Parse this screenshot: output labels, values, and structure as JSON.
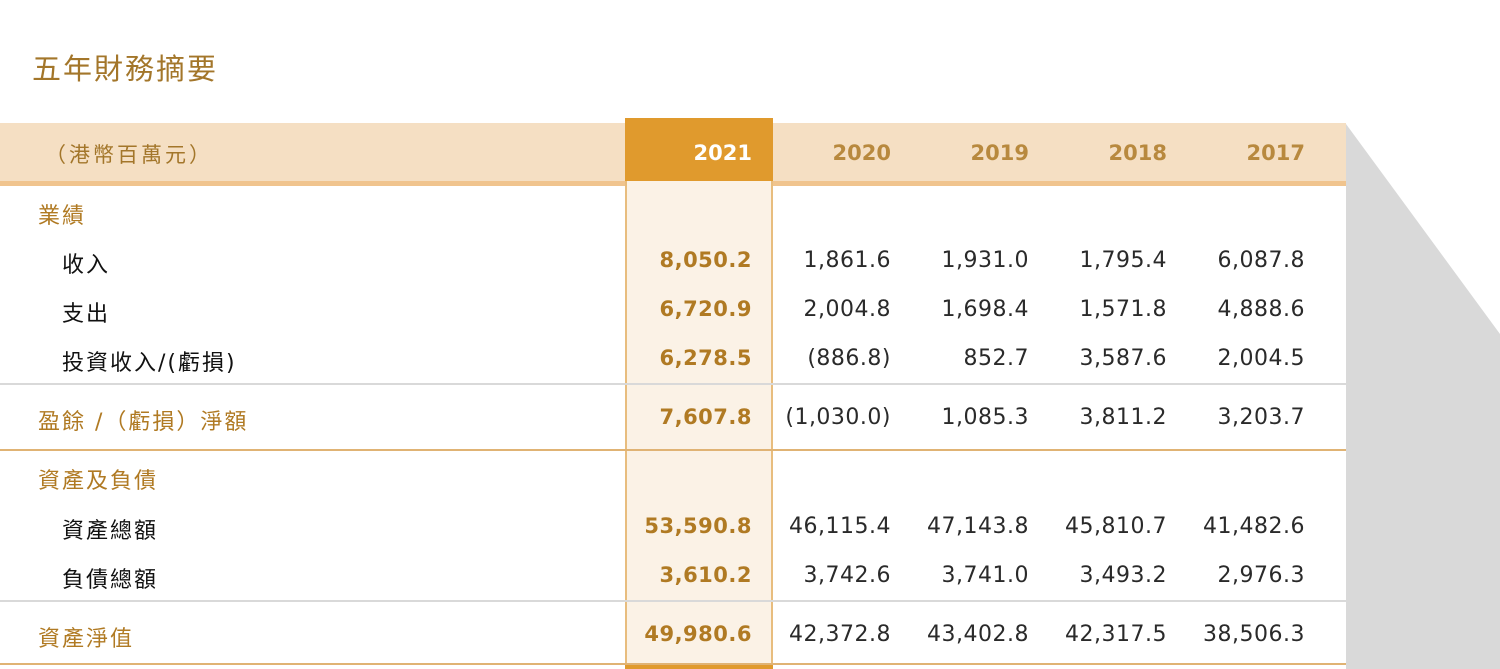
{
  "title": "五年財務摘要",
  "header": {
    "unit_label": "（港幣百萬元）",
    "years": [
      "2021",
      "2020",
      "2019",
      "2018",
      "2017"
    ]
  },
  "sections": {
    "results": {
      "title": "業績",
      "rows": [
        {
          "label": "收入",
          "values": [
            "8,050.2",
            "1,861.6",
            "1,931.0",
            "1,795.4",
            "6,087.8"
          ]
        },
        {
          "label": "支出",
          "values": [
            "6,720.9",
            "2,004.8",
            "1,698.4",
            "1,571.8",
            "4,888.6"
          ]
        },
        {
          "label": "投資收入/(虧損)",
          "values": [
            "6,278.5",
            "(886.8)",
            "852.7",
            "3,587.6",
            "2,004.5"
          ]
        }
      ]
    },
    "surplus": {
      "label": "盈餘 /（虧損）淨額",
      "values": [
        "7,607.8",
        "(1,030.0)",
        "1,085.3",
        "3,811.2",
        "3,203.7"
      ]
    },
    "assets_liabilities": {
      "title": "資產及負債",
      "rows": [
        {
          "label": "資產總額",
          "values": [
            "53,590.8",
            "46,115.4",
            "47,143.8",
            "45,810.7",
            "41,482.6"
          ]
        },
        {
          "label": "負債總額",
          "values": [
            "3,610.2",
            "3,742.6",
            "3,741.0",
            "3,493.2",
            "2,976.3"
          ]
        }
      ]
    },
    "net_assets": {
      "label": "資產淨值",
      "values": [
        "49,980.6",
        "42,372.8",
        "43,402.8",
        "42,317.5",
        "38,506.3"
      ]
    }
  },
  "colors": {
    "accent": "#e09a2d",
    "header_band": "#f5dfc3",
    "section_text": "#b07a23",
    "highlight_column": "#fbf2e6"
  }
}
